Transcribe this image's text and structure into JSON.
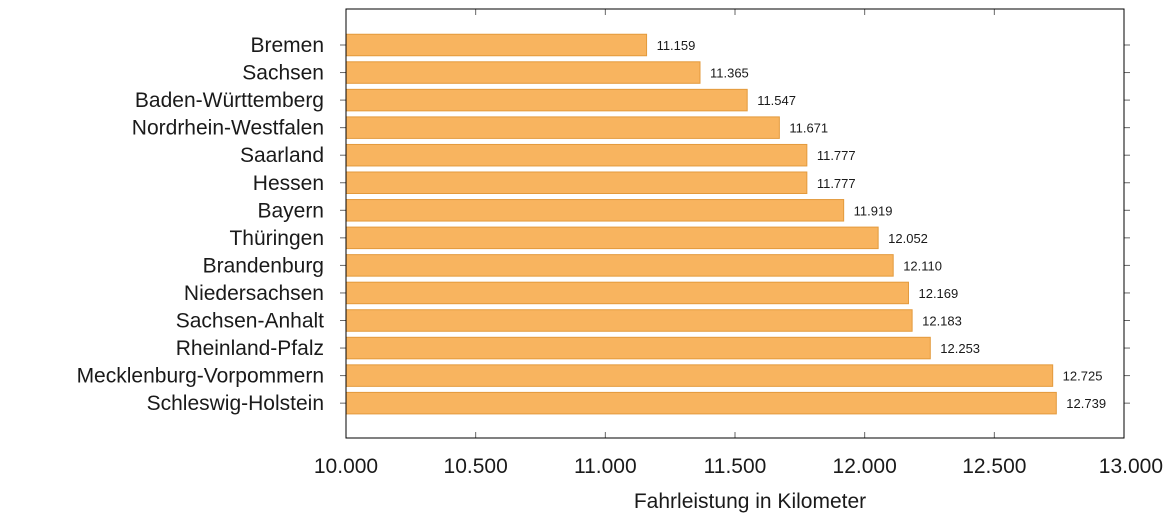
{
  "chart_data": {
    "type": "bar",
    "orientation": "horizontal",
    "categories": [
      "Bremen",
      "Sachsen",
      "Baden-Württemberg",
      "Nordrhein-Westfalen",
      "Saarland",
      "Hessen",
      "Bayern",
      "Thüringen",
      "Brandenburg",
      "Niedersachsen",
      "Sachsen-Anhalt",
      "Rheinland-Pfalz",
      "Mecklenburg-Vorpommern",
      "Schleswig-Holstein"
    ],
    "values": [
      11159,
      11365,
      11547,
      11671,
      11777,
      11777,
      11919,
      12052,
      12110,
      12169,
      12183,
      12253,
      12725,
      12739
    ],
    "value_labels": [
      "11.159",
      "11.365",
      "11.547",
      "11.671",
      "11.777",
      "11.777",
      "11.919",
      "12.052",
      "12.110",
      "12.169",
      "12.183",
      "12.253",
      "12.725",
      "12.739"
    ],
    "xlabel": "Fahrleistung in Kilometer",
    "xlim": [
      10000,
      13000
    ],
    "x_ticks": [
      10000,
      10500,
      11000,
      11500,
      12000,
      12500,
      13000
    ],
    "x_tick_labels": [
      "10.000",
      "10.500",
      "11.000",
      "11.500",
      "12.000",
      "12.500",
      "13.000"
    ],
    "grid": false,
    "bar_color": "#f8b45f",
    "bar_edge_color": "#e39a3c"
  }
}
